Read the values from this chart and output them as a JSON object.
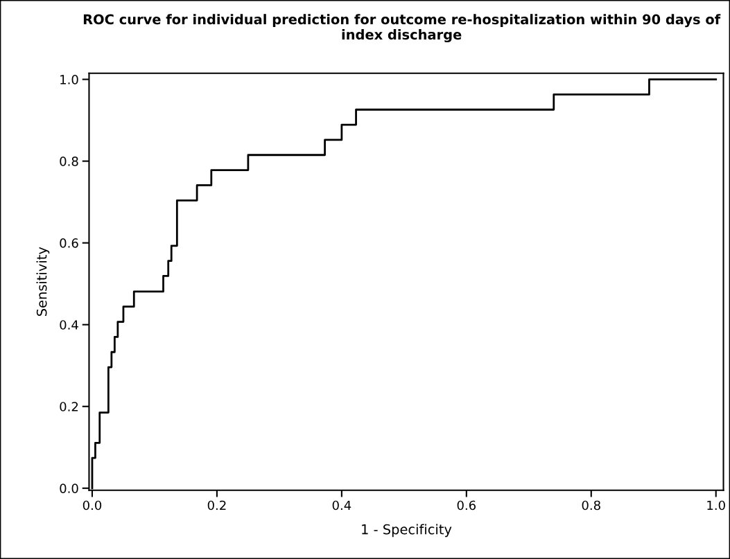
{
  "chart_data": {
    "type": "step",
    "title": "ROC curve for individual prediction for outcome re-hospitalization within 90 days of index discharge",
    "xlabel": "1 - Specificity",
    "ylabel": "Sensitivity",
    "x": [
      0.0,
      0.0,
      0.005,
      0.012,
      0.026,
      0.031,
      0.036,
      0.041,
      0.05,
      0.067,
      0.114,
      0.122,
      0.127,
      0.136,
      0.168,
      0.191,
      0.25,
      0.373,
      0.4,
      0.423,
      0.74,
      0.893,
      1.0
    ],
    "values": [
      0.0,
      0.074,
      0.111,
      0.185,
      0.296,
      0.333,
      0.37,
      0.407,
      0.444,
      0.481,
      0.519,
      0.556,
      0.593,
      0.704,
      0.741,
      0.778,
      0.815,
      0.852,
      0.889,
      0.926,
      0.963,
      1.0,
      1.0
    ],
    "color": "#000000",
    "xlim": [
      -0.005,
      1.012
    ],
    "ylim": [
      -0.005,
      1.015
    ],
    "xticks": [
      {
        "value": 0,
        "label": "0.0"
      },
      0.2,
      0.4,
      0.6,
      0.8,
      {
        "value": 1,
        "label": "1.0"
      }
    ],
    "yticks": [
      {
        "value": 0,
        "label": "0.0"
      },
      0.2,
      0.4,
      0.6,
      0.8,
      {
        "value": 1,
        "label": "1.0"
      }
    ],
    "grid": false,
    "legend": false,
    "marker": "none",
    "line_style": "solid"
  }
}
